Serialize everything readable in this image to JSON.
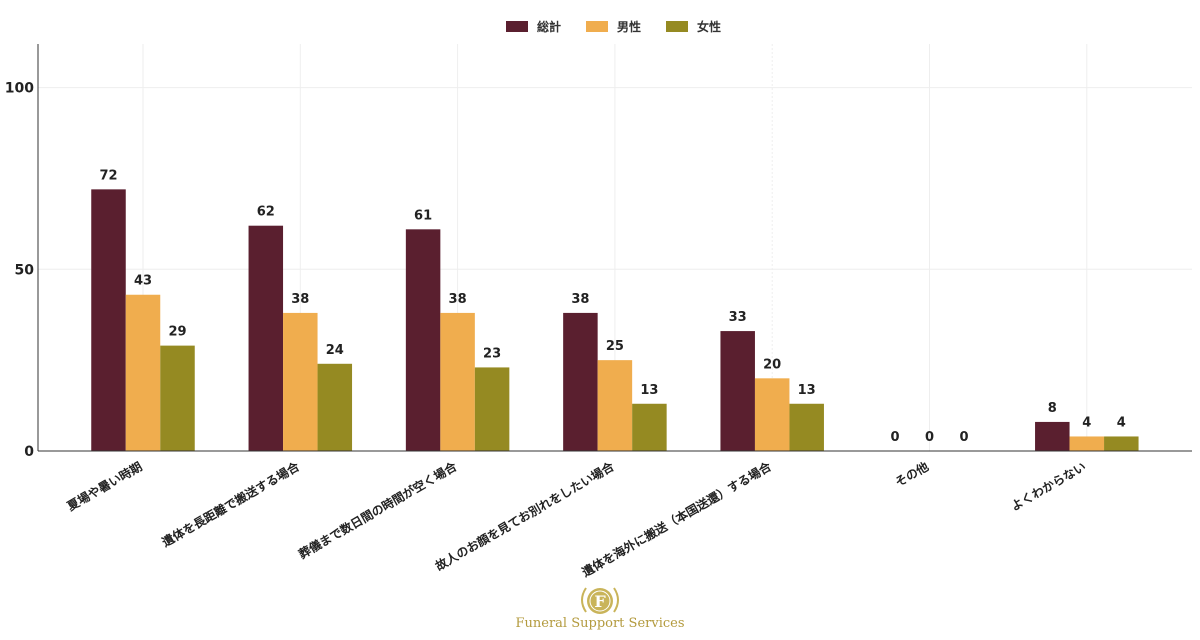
{
  "chart_data": {
    "type": "bar",
    "categories": [
      "夏場や暑い時期",
      "遺体を長距離で搬送する場合",
      "葬儀まで数日間の時間が空く場合",
      "故人のお顔を見てお別れをしたい場合",
      "遺体を海外に搬送（本国送還）する場合",
      "その他",
      "よくわからない"
    ],
    "series": [
      {
        "name": "総計",
        "color": "#5a1f2f",
        "values": [
          72,
          62,
          61,
          38,
          33,
          0,
          8
        ]
      },
      {
        "name": "男性",
        "color": "#f0ad4e",
        "values": [
          43,
          38,
          38,
          25,
          20,
          0,
          4
        ]
      },
      {
        "name": "女性",
        "color": "#958a22",
        "values": [
          29,
          24,
          23,
          13,
          13,
          0,
          4
        ]
      }
    ],
    "yticks": [
      0,
      50,
      100
    ],
    "ylim": [
      0,
      112
    ],
    "grid": true,
    "legend_position": "top-center",
    "data_labels": true
  },
  "watermark": {
    "logo_letter": "F",
    "text": "Funeral Support Services"
  }
}
